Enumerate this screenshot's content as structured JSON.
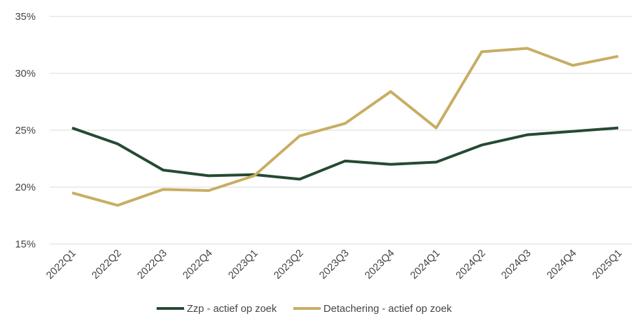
{
  "chart_data": {
    "type": "line",
    "categories": [
      "2022Q1",
      "2022Q2",
      "2022Q3",
      "2022Q4",
      "2023Q1",
      "2023Q2",
      "2023Q3",
      "2023Q4",
      "2024Q1",
      "2024Q2",
      "2024Q3",
      "2024Q4",
      "2025Q1"
    ],
    "series": [
      {
        "name": "Zzp - actief op zoek",
        "color": "#254a32",
        "values": [
          25.2,
          23.8,
          21.5,
          21.0,
          21.1,
          20.7,
          22.3,
          22.0,
          22.2,
          23.7,
          24.6,
          24.9,
          25.2
        ]
      },
      {
        "name": "Detachering - actief op zoek",
        "color": "#c8ad63",
        "values": [
          19.5,
          18.4,
          19.8,
          19.7,
          21.0,
          24.5,
          25.6,
          28.4,
          25.2,
          31.9,
          32.2,
          30.7,
          31.5
        ]
      }
    ],
    "ylim": [
      15,
      35
    ],
    "yticks": [
      {
        "value": 15,
        "label": "15%"
      },
      {
        "value": 20,
        "label": "20%"
      },
      {
        "value": 25,
        "label": "25%"
      },
      {
        "value": 30,
        "label": "30%"
      },
      {
        "value": 35,
        "label": "35%"
      }
    ],
    "grid": true,
    "legend": "bottom"
  }
}
